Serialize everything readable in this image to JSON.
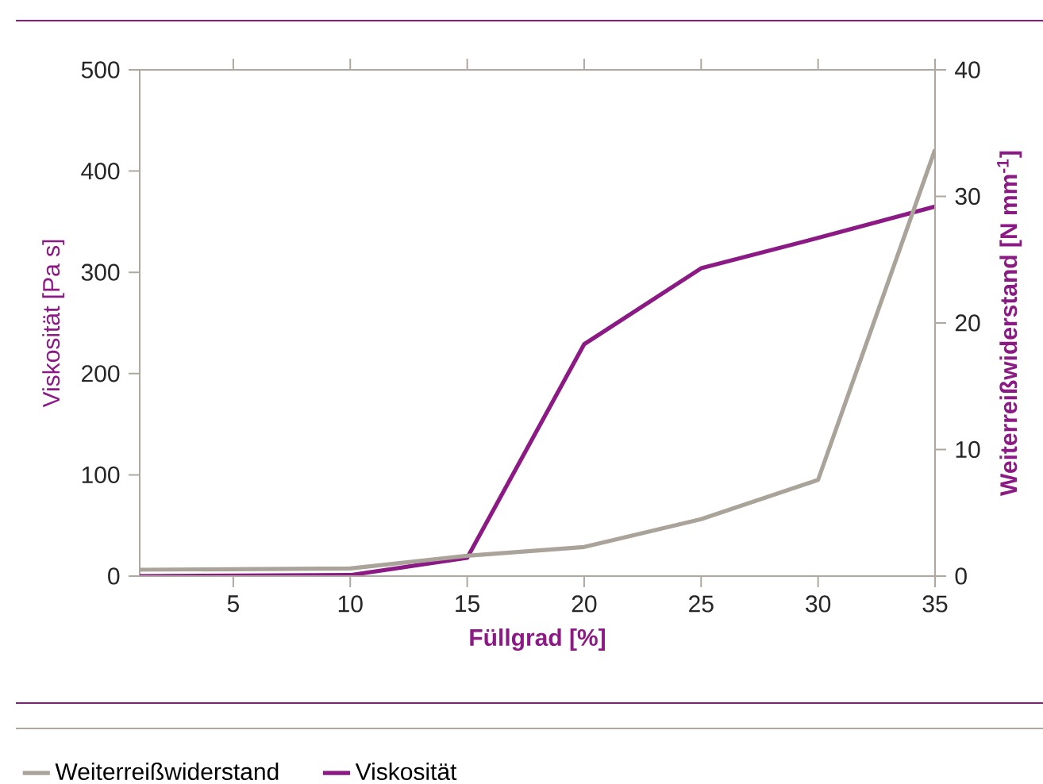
{
  "chart_data": {
    "type": "line",
    "xlabel": "Füllgrad [%]",
    "ylabel": "Viskosität [Pa s]",
    "y2label": "Weiterreißwiderstand [N mm$^{-1}$]",
    "x": [
      1,
      10,
      15,
      20,
      25,
      30,
      35
    ],
    "series": [
      {
        "name": "Weiterreißwiderstand",
        "color": "#aaa39a",
        "axis": "y2",
        "values": [
          0.5,
          0.6,
          1.6,
          2.3,
          4.5,
          7.6,
          33.7
        ]
      },
      {
        "name": "Viskosität",
        "color": "#8b1a84",
        "values": [
          0,
          1,
          18,
          229,
          304,
          334,
          365
        ]
      }
    ],
    "xlim": [
      1,
      35
    ],
    "xticks": [
      5,
      10,
      15,
      20,
      25,
      30,
      35
    ],
    "ylim": [
      0,
      500
    ],
    "yticks": [
      0,
      100,
      200,
      300,
      400,
      500
    ],
    "y2lim": [
      0,
      40
    ],
    "y2ticks": [
      0,
      10,
      20,
      30,
      40
    ],
    "legend": "bottom"
  }
}
